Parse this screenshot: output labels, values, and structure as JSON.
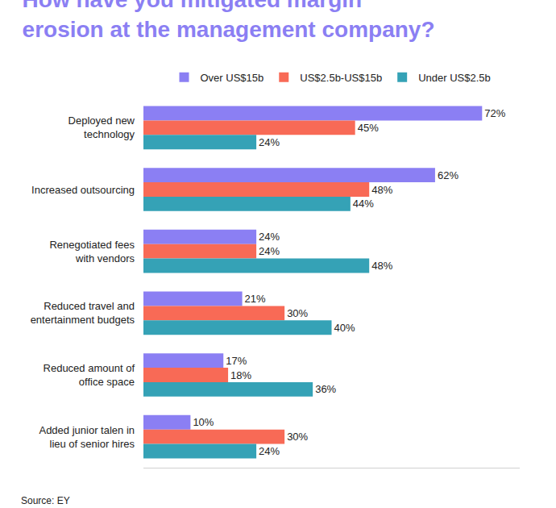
{
  "chart_data": {
    "type": "bar",
    "title": "How have you mitigated margin erosion at the management company?",
    "orientation": "horizontal",
    "categories": [
      "Deployed new technology",
      "Increased outsourcing",
      "Renegotiated fees with vendors",
      "Reduced travel and entertainment budgets",
      "Reduced amount of office space",
      "Added junior talen in lieu of senior hires"
    ],
    "series": [
      {
        "name": "Over US$15b",
        "color": "#8b7ff3",
        "values": [
          72,
          62,
          24,
          21,
          17,
          10
        ],
        "value_labels": [
          "72%",
          "62%",
          "24%",
          "21%",
          "17%",
          "10%"
        ]
      },
      {
        "name": "US$2.5b-US$15b",
        "color": "#f86a56",
        "values": [
          45,
          48,
          24,
          30,
          18,
          30
        ],
        "value_labels": [
          "45%",
          "48%",
          "24%",
          "30%",
          "18%",
          "30%"
        ]
      },
      {
        "name": "Under US$2.5b",
        "color": "#35a2b6",
        "values": [
          24,
          44,
          48,
          40,
          36,
          24
        ],
        "value_labels": [
          "24%",
          "44%",
          "48%",
          "40%",
          "36%",
          "24%"
        ]
      }
    ],
    "xlim": [
      0,
      80
    ],
    "xticks": [],
    "grid": false,
    "legend": "top",
    "data_labels": true,
    "tick_labels": "y",
    "annotations": [
      "Source: EY"
    ]
  }
}
